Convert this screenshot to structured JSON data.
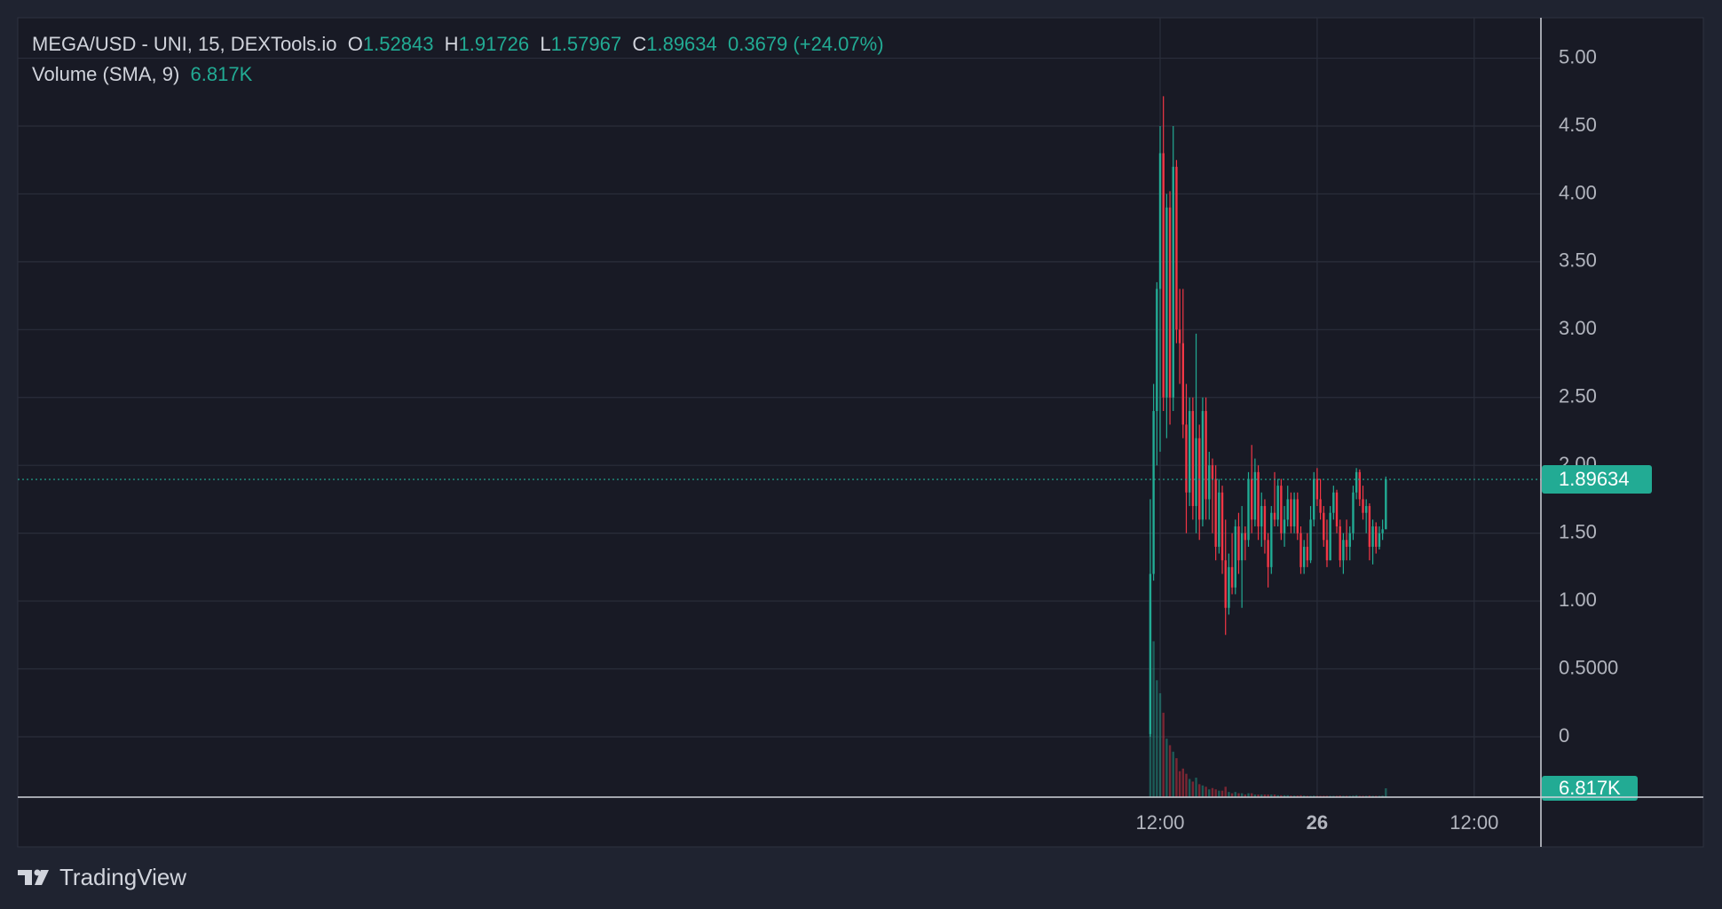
{
  "chart_data": {
    "type": "candlestick",
    "title": "MEGA/USD - UNI, 15, DEXTools.io",
    "ohlc_labels": [
      "O",
      "H",
      "L",
      "C"
    ],
    "change_label": "0.3679 (+24.07%)",
    "up_color": "#22ab94",
    "down_color": "#f23645",
    "x": [
      11.25,
      11.5,
      11.75,
      12,
      12.25,
      12.5,
      12.75,
      13,
      13.25,
      13.5,
      13.75,
      14,
      14.25,
      14.5,
      14.75,
      15,
      15.25,
      15.5,
      15.75,
      16,
      16.25,
      16.5,
      16.75,
      17,
      17.25,
      17.5,
      17.75,
      18,
      18.25,
      18.5,
      18.75,
      19,
      19.25,
      19.5,
      19.75,
      20,
      20.25,
      20.5,
      20.75,
      21,
      21.25,
      21.5,
      21.75,
      22,
      22.25,
      22.5,
      22.75,
      23,
      23.25,
      23.5,
      23.75,
      24,
      24.25,
      24.5,
      24.75,
      25,
      25.25,
      25.5,
      25.75,
      26,
      26.25,
      26.5,
      26.75,
      27,
      27.25,
      27.5,
      27.75,
      28,
      28.25,
      28.5,
      28.75,
      29,
      29.25
    ],
    "open": [
      0.02,
      1.2,
      2.4,
      3.3,
      4.3,
      2.5,
      3.9,
      2.5,
      4.2,
      3.0,
      2.9,
      2.3,
      1.8,
      2.4,
      1.7,
      2.2,
      1.6,
      2.4,
      1.75,
      2.0,
      1.9,
      1.4,
      1.8,
      1.3,
      0.95,
      1.25,
      1.1,
      1.55,
      1.3,
      1.5,
      1.45,
      1.9,
      1.6,
      1.95,
      1.55,
      1.7,
      1.45,
      1.25,
      1.65,
      1.6,
      1.85,
      1.5,
      1.6,
      1.75,
      1.55,
      1.75,
      1.5,
      1.25,
      1.4,
      1.3,
      1.6,
      1.9,
      1.75,
      1.65,
      1.45,
      1.3,
      1.65,
      1.8,
      1.55,
      1.3,
      1.45,
      1.4,
      1.5,
      1.8,
      1.95,
      1.75,
      1.65,
      1.7,
      1.4,
      1.55,
      1.4,
      1.5,
      1.52843
    ],
    "high": [
      1.75,
      2.6,
      3.35,
      4.5,
      4.72,
      4.0,
      4.02,
      4.5,
      4.25,
      3.3,
      3.3,
      2.6,
      2.5,
      2.5,
      2.97,
      2.3,
      2.5,
      2.5,
      2.1,
      2.05,
      2.0,
      1.9,
      1.85,
      1.6,
      1.35,
      1.5,
      1.6,
      1.65,
      1.7,
      1.55,
      1.95,
      2.15,
      2.05,
      2.0,
      1.8,
      1.75,
      1.5,
      1.7,
      1.95,
      1.9,
      1.9,
      1.7,
      1.85,
      1.8,
      1.8,
      1.8,
      1.55,
      1.45,
      1.5,
      1.7,
      1.95,
      1.98,
      1.9,
      1.7,
      1.6,
      1.7,
      1.85,
      1.82,
      1.6,
      1.5,
      1.6,
      1.55,
      1.85,
      1.98,
      1.97,
      1.85,
      1.75,
      1.72,
      1.6,
      1.58,
      1.55,
      1.6,
      1.91726
    ],
    "low": [
      0.0,
      1.15,
      2.0,
      2.1,
      2.4,
      2.2,
      2.3,
      2.4,
      2.9,
      2.6,
      2.2,
      1.5,
      1.7,
      1.6,
      1.5,
      1.45,
      1.55,
      1.6,
      1.6,
      1.5,
      1.3,
      1.35,
      1.2,
      0.75,
      0.9,
      1.05,
      1.05,
      1.2,
      0.95,
      1.3,
      1.4,
      1.5,
      1.55,
      1.45,
      1.4,
      1.35,
      1.1,
      1.2,
      1.55,
      1.55,
      1.45,
      1.4,
      1.55,
      1.5,
      1.5,
      1.45,
      1.2,
      1.2,
      1.25,
      1.28,
      1.55,
      1.7,
      1.6,
      1.4,
      1.25,
      1.3,
      1.6,
      1.5,
      1.25,
      1.2,
      1.3,
      1.3,
      1.45,
      1.75,
      1.7,
      1.6,
      1.5,
      1.3,
      1.27,
      1.35,
      1.38,
      1.45,
      1.57967
    ],
    "close": [
      1.2,
      2.4,
      3.3,
      4.3,
      2.5,
      3.9,
      2.5,
      4.2,
      3.0,
      2.9,
      2.3,
      1.8,
      2.4,
      1.7,
      2.2,
      1.6,
      2.4,
      1.75,
      2.0,
      1.9,
      1.4,
      1.8,
      1.3,
      0.95,
      1.25,
      1.1,
      1.55,
      1.3,
      1.5,
      1.45,
      1.9,
      1.6,
      1.95,
      1.55,
      1.7,
      1.45,
      1.25,
      1.65,
      1.6,
      1.85,
      1.5,
      1.6,
      1.75,
      1.55,
      1.75,
      1.5,
      1.25,
      1.4,
      1.3,
      1.6,
      1.9,
      1.75,
      1.65,
      1.45,
      1.3,
      1.65,
      1.8,
      1.55,
      1.3,
      1.45,
      1.4,
      1.5,
      1.8,
      1.95,
      1.75,
      1.65,
      1.7,
      1.4,
      1.55,
      1.4,
      1.5,
      1.52843,
      1.89634
    ],
    "volume": {
      "name": "Volume (SMA, 9)",
      "values": [
        150000,
        120000,
        90000,
        80000,
        65000,
        45000,
        40000,
        35000,
        30000,
        20000,
        22000,
        18000,
        14000,
        12000,
        15000,
        10000,
        9000,
        8000,
        6000,
        7000,
        6000,
        5000,
        5000,
        8000,
        4000,
        3000,
        4000,
        3000,
        3000,
        2000,
        3000,
        3000,
        2000,
        2000,
        2000,
        2000,
        2000,
        2000,
        2000,
        1500,
        1500,
        1500,
        1500,
        1200,
        1200,
        1200,
        1500,
        1200,
        1000,
        1000,
        1200,
        1000,
        1000,
        1000,
        1000,
        1000,
        1000,
        1000,
        1200,
        1000,
        1000,
        1000,
        1200,
        1500,
        1000,
        1000,
        1000,
        1200,
        1000,
        1000,
        1000,
        1200,
        6817
      ],
      "sma": {
        "value": 6817,
        "label": "6.817K"
      },
      "ylim": [
        0,
        600000
      ]
    },
    "xlim": [
      -75.3,
      41.1
    ],
    "xticks": [
      {
        "value": 12,
        "label": "12:00"
      },
      {
        "value": 24,
        "label": "26"
      },
      {
        "value": 36,
        "label": "12:00"
      }
    ],
    "ylim": [
      -0.445,
      5.298
    ],
    "yticks": [
      0,
      {
        "value": 0.5,
        "label": "0.5000"
      },
      {
        "value": 1,
        "label": "1.00"
      },
      {
        "value": 1.5,
        "label": "1.50"
      },
      {
        "value": 2,
        "label": "2.00"
      },
      {
        "value": 2.5,
        "label": "2.50"
      },
      {
        "value": 3,
        "label": "3.00"
      },
      {
        "value": 3.5,
        "label": "3.50"
      },
      {
        "value": 4,
        "label": "4.00"
      },
      {
        "value": 4.5,
        "label": "4.50"
      },
      {
        "value": 5,
        "label": "5.00"
      }
    ],
    "grid": true
  },
  "footer": "TradingView"
}
